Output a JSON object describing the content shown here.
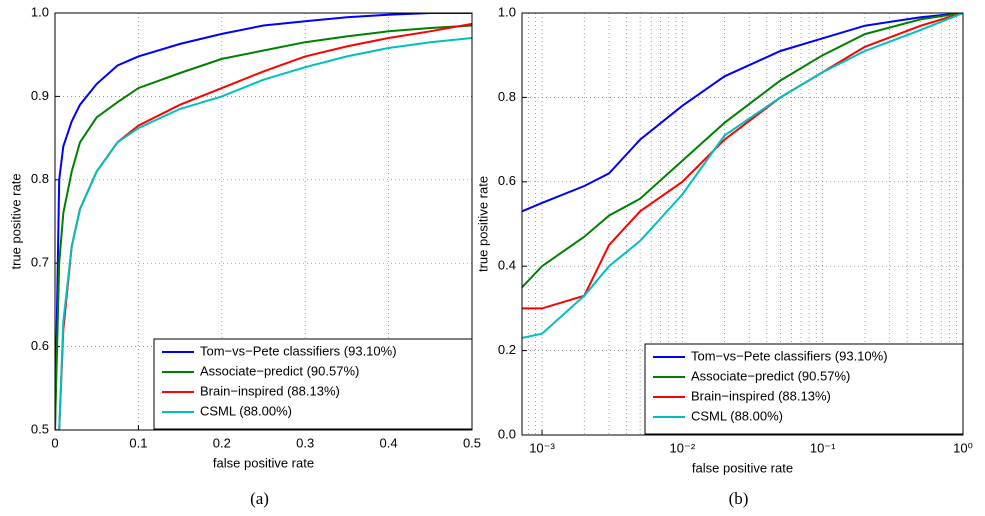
{
  "chart_data": [
    {
      "type": "line",
      "caption": "(a)",
      "x_label": "false positive rate",
      "y_label": "true positive rate",
      "x": [
        0,
        0.005,
        0.01,
        0.02,
        0.03,
        0.05,
        0.075,
        0.1,
        0.15,
        0.2,
        0.25,
        0.3,
        0.35,
        0.4,
        0.45,
        0.5
      ],
      "series": [
        {
          "name": "Tom−vs−Pete classifiers (93.10%)",
          "color": "#0000ff",
          "values": [
            0.5,
            0.8,
            0.84,
            0.87,
            0.89,
            0.915,
            0.937,
            0.948,
            0.963,
            0.975,
            0.985,
            0.99,
            0.995,
            0.998,
            1.0,
            1.0
          ]
        },
        {
          "name": "Associate−predict (90.57%)",
          "color": "#008000",
          "values": [
            0.5,
            0.7,
            0.76,
            0.81,
            0.845,
            0.875,
            0.893,
            0.91,
            0.928,
            0.945,
            0.955,
            0.965,
            0.972,
            0.978,
            0.982,
            0.985
          ]
        },
        {
          "name": "Brain−inspired (88.13%)",
          "color": "#ff0000",
          "values": [
            0.5,
            0.5,
            0.62,
            0.72,
            0.765,
            0.81,
            0.845,
            0.865,
            0.89,
            0.91,
            0.93,
            0.948,
            0.96,
            0.97,
            0.978,
            0.987
          ]
        },
        {
          "name": "CSML (88.00%)",
          "color": "#00bfbf",
          "values": [
            0.5,
            0.5,
            0.63,
            0.72,
            0.765,
            0.81,
            0.845,
            0.862,
            0.885,
            0.9,
            0.92,
            0.935,
            0.948,
            0.958,
            0.965,
            0.97
          ]
        }
      ],
      "xlim": [
        0,
        0.5
      ],
      "xticks": [
        0,
        0.1,
        0.2,
        0.3,
        0.4,
        0.5
      ],
      "ylim": [
        0.5,
        1
      ],
      "yticks": [
        0.5,
        0.6,
        0.7,
        0.8,
        0.9,
        {
          "value": 1,
          "label": "1.0"
        }
      ],
      "grid": true,
      "log_x": false,
      "legend": "lower right"
    },
    {
      "type": "line",
      "caption": "(b)",
      "x_label": "false positive rate",
      "y_label": "true positive rate",
      "x": [
        0.00072,
        0.001,
        0.002,
        0.003,
        0.005,
        0.01,
        0.02,
        0.05,
        0.1,
        0.2,
        0.5,
        1
      ],
      "series": [
        {
          "name": "Tom−vs−Pete classifiers (93.10%)",
          "color": "#0000ff",
          "values": [
            0.53,
            0.55,
            0.59,
            0.62,
            0.7,
            0.78,
            0.85,
            0.91,
            0.94,
            0.97,
            0.99,
            1
          ]
        },
        {
          "name": "Associate−predict (90.57%)",
          "color": "#008000",
          "values": [
            0.35,
            0.4,
            0.47,
            0.52,
            0.56,
            0.65,
            0.74,
            0.84,
            0.9,
            0.95,
            0.985,
            1
          ]
        },
        {
          "name": "Brain−inspired (88.13%)",
          "color": "#ff0000",
          "values": [
            0.3,
            0.3,
            0.33,
            0.45,
            0.53,
            0.6,
            0.7,
            0.8,
            0.86,
            0.92,
            0.97,
            1
          ]
        },
        {
          "name": "CSML (88.00%)",
          "color": "#00bfbf",
          "values": [
            0.23,
            0.24,
            0.33,
            0.4,
            0.46,
            0.57,
            0.71,
            0.8,
            0.86,
            0.91,
            0.96,
            1
          ]
        }
      ],
      "xlim": [
        0.00072,
        1
      ],
      "xticks": [
        {
          "value": 0.001,
          "label": "10⁻³"
        },
        {
          "value": 0.01,
          "label": "10⁻²"
        },
        {
          "value": 0.1,
          "label": "10⁻¹"
        },
        {
          "value": 1,
          "label": "10⁰"
        }
      ],
      "ylim": [
        0,
        1
      ],
      "yticks": [
        {
          "value": 0,
          "label": "0.0"
        },
        0.2,
        0.4,
        0.6,
        0.8,
        {
          "value": 1,
          "label": "1.0"
        }
      ],
      "grid": true,
      "log_x": true,
      "legend": "lower right"
    }
  ]
}
